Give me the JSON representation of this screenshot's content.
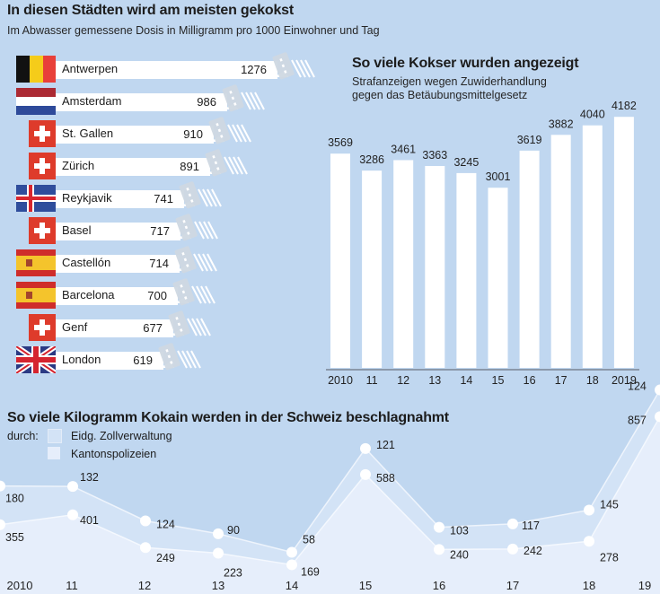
{
  "colors": {
    "background": "#c0d7f0",
    "zoll_band": "#d3e3f6",
    "kanton_band": "#e6eefb",
    "bar": "#ffffff",
    "axis": "#6b7480",
    "swiss_red": "#de3b2b"
  },
  "cities_chart": {
    "title": "In diesen Städten wird am meisten gekokst",
    "subtitle": "Im Abwasser gemessene Dosis in Milligramm pro 1000 Einwohner und Tag",
    "rows": [
      {
        "city": "Antwerpen",
        "value": 1276,
        "flag": "belgium-flag",
        "value_label": "1276"
      },
      {
        "city": "Amsterdam",
        "value": 986,
        "flag": "netherlands-flag",
        "value_label": "986"
      },
      {
        "city": "St. Gallen",
        "value": 910,
        "flag": "switzerland-flag",
        "value_label": "910"
      },
      {
        "city": "Zürich",
        "value": 891,
        "flag": "switzerland-flag",
        "value_label": "891"
      },
      {
        "city": "Reykjavik",
        "value": 741,
        "flag": "iceland-flag",
        "value_label": "741"
      },
      {
        "city": "Basel",
        "value": 717,
        "flag": "switzerland-flag",
        "value_label": "717"
      },
      {
        "city": "Castellón",
        "value": 714,
        "flag": "spain-flag",
        "value_label": "714"
      },
      {
        "city": "Barcelona",
        "value": 700,
        "flag": "spain-flag",
        "value_label": "700"
      },
      {
        "city": "Genf",
        "value": 677,
        "flag": "switzerland-flag",
        "value_label": "677"
      },
      {
        "city": "London",
        "value": 619,
        "flag": "uk-flag",
        "value_label": "619"
      }
    ]
  },
  "reports_chart": {
    "title": "So viele Kokser wurden angezeigt",
    "subtitle_line1": "Strafanzeigen wegen Zuwiderhandlung",
    "subtitle_line2": "gegen das Betäubungsmittelgesetz"
  },
  "seizures_chart": {
    "title": "So viele Kilogramm Kokain werden in der Schweiz beschlagnahmt",
    "legend_prefix": "durch:",
    "legend": [
      "Eidg. Zollverwaltung",
      "Kantonspolizeien"
    ]
  },
  "chart_data": [
    {
      "type": "bar",
      "orientation": "horizontal",
      "title": "In diesen Städten wird am meisten gekokst",
      "subtitle": "Im Abwasser gemessene Dosis in Milligramm pro 1000 Einwohner und Tag",
      "categories": [
        "Antwerpen",
        "Amsterdam",
        "St. Gallen",
        "Zürich",
        "Reykjavik",
        "Basel",
        "Castellón",
        "Barcelona",
        "Genf",
        "London"
      ],
      "values": [
        1276,
        986,
        910,
        891,
        741,
        717,
        714,
        700,
        677,
        619
      ],
      "xlabel": "",
      "ylabel": ""
    },
    {
      "type": "bar",
      "title": "So viele Kokser wurden angezeigt",
      "subtitle": "Strafanzeigen wegen Zuwiderhandlung gegen das Betäubungsmittelgesetz",
      "categories": [
        "2010",
        "11",
        "12",
        "13",
        "14",
        "15",
        "16",
        "17",
        "18",
        "2019"
      ],
      "values": [
        3569,
        3286,
        3461,
        3363,
        3245,
        3001,
        3619,
        3882,
        4040,
        4182
      ],
      "xlabel": "",
      "ylabel": "",
      "ylim": [
        0,
        4300
      ],
      "grid": false
    },
    {
      "type": "area",
      "stacked": true,
      "title": "So viele Kilogramm Kokain werden in der Schweiz beschlagnahmt",
      "x": [
        "2010",
        "11",
        "12",
        "13",
        "14",
        "15",
        "16",
        "17",
        "18",
        "19"
      ],
      "series": [
        {
          "name": "Kantonspolizeien",
          "values": [
            355,
            401,
            249,
            223,
            169,
            588,
            240,
            242,
            278,
            857
          ]
        },
        {
          "name": "Eidg. Zollverwaltung",
          "values": [
            180,
            132,
            124,
            90,
            58,
            121,
            103,
            117,
            145,
            124
          ]
        }
      ],
      "legend": "top-left",
      "ylim": [
        0,
        1000
      ],
      "xlabel": "",
      "ylabel": "kg"
    }
  ]
}
